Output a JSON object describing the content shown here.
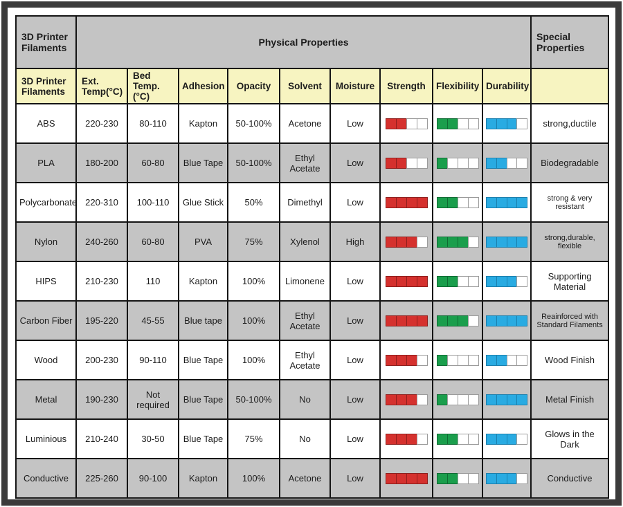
{
  "palette": {
    "frame": "#3b3b3b",
    "line": "#141414",
    "header_gray": "#c4c4c4",
    "header_yellow": "#f7f4c1",
    "stripe": "#c4c4c4",
    "empty_border": "#9b9b9b"
  },
  "header": {
    "filaments_label": "3D Printer Filaments",
    "physical_label": "Physical Properties",
    "special_label": "Special Properties"
  },
  "columns": {
    "filaments": "3D Printer Filaments",
    "ext": "Ext. Temp(°C)",
    "bed": "Bed Temp.(°C)",
    "adhesion": "Adhesion",
    "opacity": "Opacity",
    "solvent": "Solvent",
    "moisture": "Moisture",
    "strength": "Strength",
    "flexibility": "Flexibility",
    "durability": "Durability",
    "special": ""
  },
  "rating": {
    "max": 4,
    "colors": {
      "strength": {
        "fill": "#d5312e",
        "border": "#8f1f1d"
      },
      "flexibility": {
        "fill": "#1a9e4c",
        "border": "#0f6b33"
      },
      "durability": {
        "fill": "#29abe2",
        "border": "#1b7fad"
      }
    }
  },
  "rows": [
    {
      "name": "ABS",
      "ext": "220-230",
      "bed": "80-110",
      "adhesion": "Kapton",
      "opacity": "50-100%",
      "solvent": "Acetone",
      "moisture": "Low",
      "strength": 2,
      "flexibility": 2,
      "durability": 3,
      "special": "strong,ductile"
    },
    {
      "name": "PLA",
      "ext": "180-200",
      "bed": "60-80",
      "adhesion": "Blue Tape",
      "opacity": "50-100%",
      "solvent": "Ethyl Acetate",
      "moisture": "Low",
      "strength": 2,
      "flexibility": 1,
      "durability": 2,
      "special": "Biodegradable"
    },
    {
      "name": "Polycarbonate",
      "ext": "220-310",
      "bed": "100-110",
      "adhesion": "Glue Stick",
      "opacity": "50%",
      "solvent": "Dimethyl",
      "moisture": "Low",
      "strength": 4,
      "flexibility": 2,
      "durability": 4,
      "special": "strong & very resistant"
    },
    {
      "name": "Nylon",
      "ext": "240-260",
      "bed": "60-80",
      "adhesion": "PVA",
      "opacity": "75%",
      "solvent": "Xylenol",
      "moisture": "High",
      "strength": 3,
      "flexibility": 3,
      "durability": 4,
      "special": "strong,durable, flexible"
    },
    {
      "name": "HIPS",
      "ext": "210-230",
      "bed": "110",
      "adhesion": "Kapton",
      "opacity": "100%",
      "solvent": "Limonene",
      "moisture": "Low",
      "strength": 4,
      "flexibility": 2,
      "durability": 3,
      "special": "Supporting Material"
    },
    {
      "name": "Carbon Fiber",
      "ext": "195-220",
      "bed": "45-55",
      "adhesion": "Blue tape",
      "opacity": "100%",
      "solvent": "Ethyl Acetate",
      "moisture": "Low",
      "strength": 4,
      "flexibility": 3,
      "durability": 4,
      "special": "Reainforced with Standard Filaments"
    },
    {
      "name": "Wood",
      "ext": "200-230",
      "bed": "90-110",
      "adhesion": "Blue Tape",
      "opacity": "100%",
      "solvent": "Ethyl Acetate",
      "moisture": "Low",
      "strength": 3,
      "flexibility": 1,
      "durability": 2,
      "special": "Wood Finish"
    },
    {
      "name": "Metal",
      "ext": "190-230",
      "bed": "Not required",
      "adhesion": "Blue Tape",
      "opacity": "50-100%",
      "solvent": "No",
      "moisture": "Low",
      "strength": 3,
      "flexibility": 1,
      "durability": 4,
      "special": "Metal Finish"
    },
    {
      "name": "Luminious",
      "ext": "210-240",
      "bed": "30-50",
      "adhesion": "Blue Tape",
      "opacity": "75%",
      "solvent": "No",
      "moisture": "Low",
      "strength": 3,
      "flexibility": 2,
      "durability": 3,
      "special": "Glows in the Dark"
    },
    {
      "name": "Conductive",
      "ext": "225-260",
      "bed": "90-100",
      "adhesion": "Kapton",
      "opacity": "100%",
      "solvent": "Acetone",
      "moisture": "Low",
      "strength": 4,
      "flexibility": 2,
      "durability": 3,
      "special": "Conductive"
    }
  ],
  "chart_data": {
    "type": "table",
    "columns": [
      "3D Printer Filaments",
      "Ext. Temp(°C)",
      "Bed Temp.(°C)",
      "Adhesion",
      "Opacity",
      "Solvent",
      "Moisture",
      "Strength (of 4)",
      "Flexibility (of 4)",
      "Durability (of 4)",
      "Special Properties"
    ],
    "rows": [
      [
        "ABS",
        "220-230",
        "80-110",
        "Kapton",
        "50-100%",
        "Acetone",
        "Low",
        2,
        2,
        3,
        "strong,ductile"
      ],
      [
        "PLA",
        "180-200",
        "60-80",
        "Blue Tape",
        "50-100%",
        "Ethyl Acetate",
        "Low",
        2,
        1,
        2,
        "Biodegradable"
      ],
      [
        "Polycarbonate",
        "220-310",
        "100-110",
        "Glue Stick",
        "50%",
        "Dimethyl",
        "Low",
        4,
        2,
        4,
        "strong & very resistant"
      ],
      [
        "Nylon",
        "240-260",
        "60-80",
        "PVA",
        "75%",
        "Xylenol",
        "High",
        3,
        3,
        4,
        "strong,durable, flexible"
      ],
      [
        "HIPS",
        "210-230",
        "110",
        "Kapton",
        "100%",
        "Limonene",
        "Low",
        4,
        2,
        3,
        "Supporting Material"
      ],
      [
        "Carbon Fiber",
        "195-220",
        "45-55",
        "Blue tape",
        "100%",
        "Ethyl Acetate",
        "Low",
        4,
        3,
        4,
        "Reainforced with Standard Filaments"
      ],
      [
        "Wood",
        "200-230",
        "90-110",
        "Blue Tape",
        "100%",
        "Ethyl Acetate",
        "Low",
        3,
        1,
        2,
        "Wood Finish"
      ],
      [
        "Metal",
        "190-230",
        "Not required",
        "Blue Tape",
        "50-100%",
        "No",
        "Low",
        3,
        1,
        4,
        "Metal Finish"
      ],
      [
        "Luminious",
        "210-240",
        "30-50",
        "Blue Tape",
        "75%",
        "No",
        "Low",
        3,
        2,
        3,
        "Glows in the Dark"
      ],
      [
        "Conductive",
        "225-260",
        "90-100",
        "Kapton",
        "100%",
        "Acetone",
        "Low",
        4,
        2,
        3,
        "Conductive"
      ]
    ]
  }
}
